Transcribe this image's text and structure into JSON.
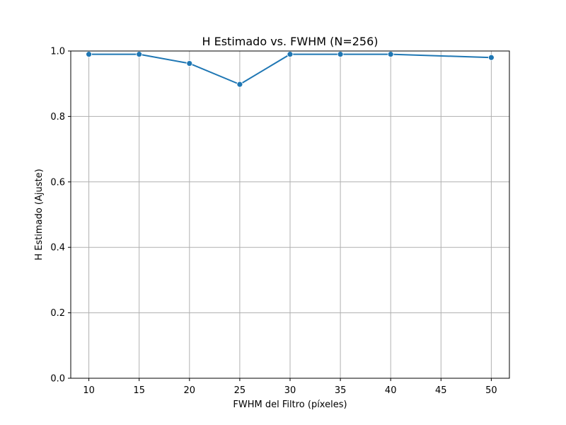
{
  "chart_data": {
    "type": "line",
    "title": "H Estimado vs. FWHM (N=256)",
    "xlabel": "FWHM del Filtro (píxeles)",
    "ylabel": "H Estimado (Ajuste)",
    "xlim": [
      8.2,
      51.8
    ],
    "ylim": [
      0.0,
      1.0
    ],
    "xticks": [
      10,
      15,
      20,
      25,
      30,
      35,
      40,
      45,
      50
    ],
    "yticks": [
      0.0,
      0.2,
      0.4,
      0.6,
      0.8,
      1.0
    ],
    "xtick_labels": [
      "10",
      "15",
      "20",
      "25",
      "30",
      "35",
      "40",
      "45",
      "50"
    ],
    "ytick_labels": [
      "0.0",
      "0.2",
      "0.4",
      "0.6",
      "0.8",
      "1.0"
    ],
    "grid": true,
    "series": [
      {
        "color": "#1f77b4",
        "x": [
          10,
          15,
          20,
          25,
          30,
          35,
          40,
          50
        ],
        "values": [
          0.99,
          0.99,
          0.962,
          0.898,
          0.99,
          0.99,
          0.99,
          0.98
        ]
      }
    ]
  }
}
